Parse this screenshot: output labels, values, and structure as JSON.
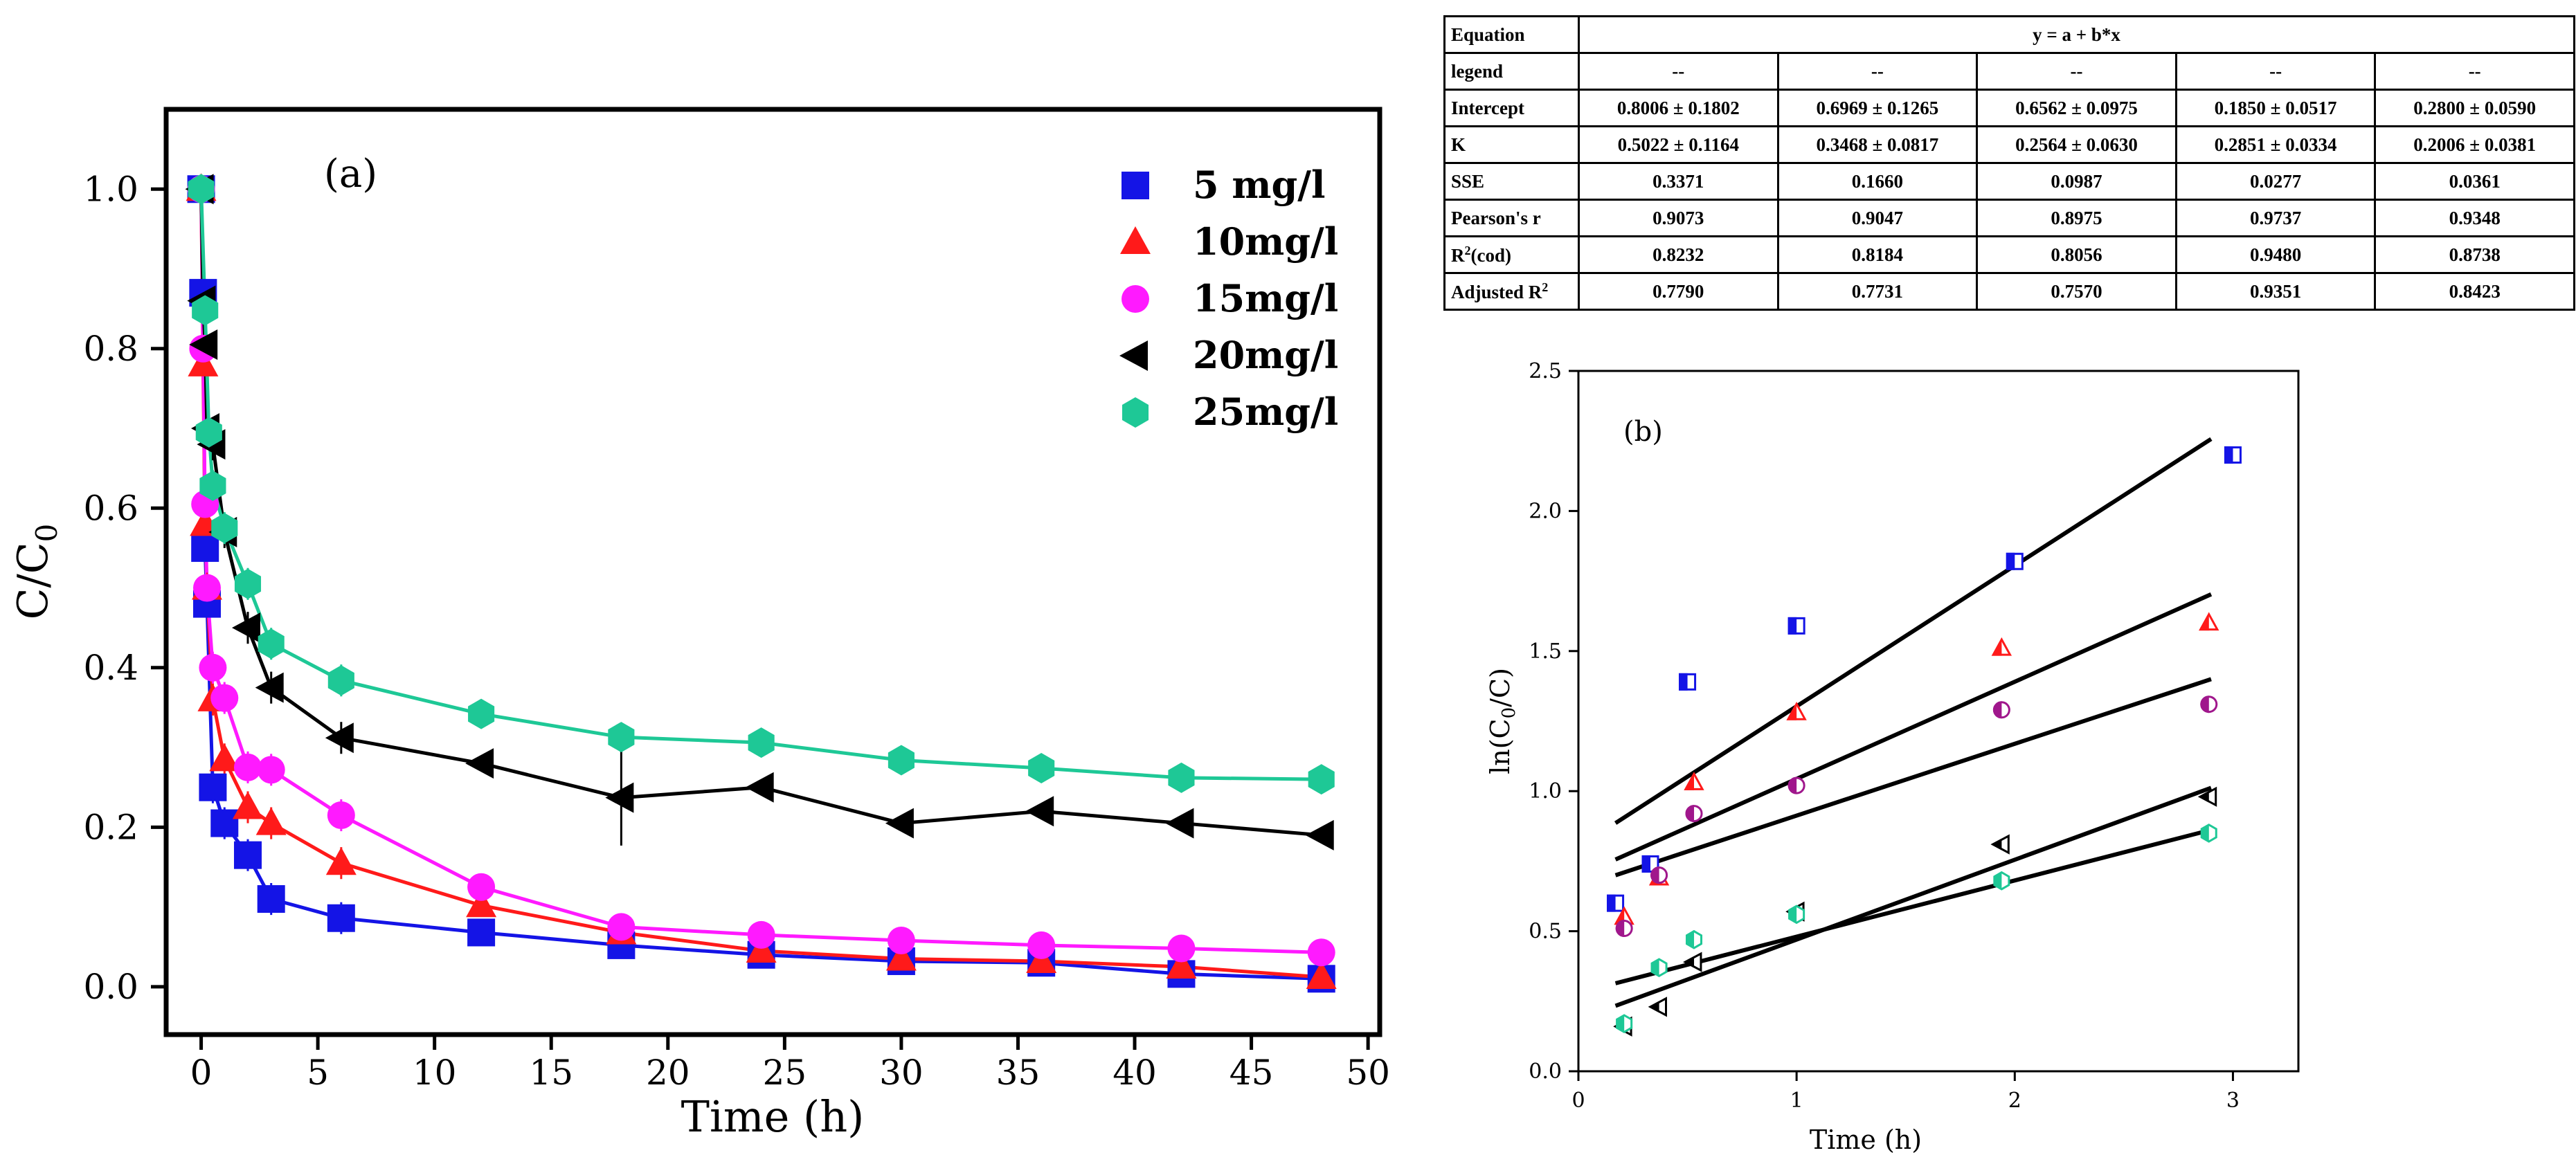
{
  "chart_data": [
    {
      "type": "line",
      "title": "(a)",
      "xlabel": "Time (h)",
      "ylabel_main": "C/C",
      "ylabel_sub": "0",
      "xlim": [
        -1.5,
        50.5
      ],
      "ylim": [
        -0.06,
        1.1
      ],
      "xticks": [
        0,
        5,
        10,
        15,
        20,
        25,
        30,
        35,
        40,
        45,
        50
      ],
      "yticks": [
        0.0,
        0.2,
        0.4,
        0.6,
        0.8,
        1.0
      ],
      "ytick_labels": [
        "0.0",
        "0.2",
        "0.4",
        "0.6",
        "0.8",
        "1.0"
      ],
      "legend_position": "top-right",
      "series": [
        {
          "name": "5  mg/l",
          "color": "#1414e6",
          "marker": "square",
          "x": [
            0,
            0.083,
            0.167,
            0.25,
            0.5,
            1,
            2,
            3,
            6,
            12,
            18,
            24,
            30,
            36,
            42,
            48
          ],
          "y": [
            1.0,
            0.87,
            0.55,
            0.48,
            0.25,
            0.205,
            0.165,
            0.11,
            0.086,
            0.068,
            0.052,
            0.04,
            0.032,
            0.03,
            0.016,
            0.01
          ]
        },
        {
          "name": "10mg/l",
          "color": "#ff1a1a",
          "marker": "triangle",
          "x": [
            0,
            0.083,
            0.167,
            0.25,
            0.5,
            1,
            2,
            3,
            6,
            12,
            18,
            24,
            30,
            36,
            42,
            48
          ],
          "y": [
            1.0,
            0.78,
            0.58,
            0.5,
            0.36,
            0.285,
            0.225,
            0.205,
            0.155,
            0.102,
            0.068,
            0.045,
            0.035,
            0.032,
            0.025,
            0.012
          ]
        },
        {
          "name": "15mg/l",
          "color": "#ff1aff",
          "marker": "circle",
          "x": [
            0,
            0.083,
            0.167,
            0.25,
            0.5,
            1,
            2,
            3,
            6,
            12,
            18,
            24,
            30,
            36,
            42,
            48
          ],
          "y": [
            1.0,
            0.8,
            0.605,
            0.5,
            0.4,
            0.362,
            0.275,
            0.272,
            0.215,
            0.125,
            0.075,
            0.065,
            0.058,
            0.052,
            0.048,
            0.043
          ]
        },
        {
          "name": "20mg/l",
          "color": "#000000",
          "marker": "triangle-left",
          "x": [
            0,
            0.083,
            0.167,
            0.25,
            0.5,
            1,
            2,
            3,
            6,
            12,
            18,
            24,
            30,
            36,
            42,
            48
          ],
          "y": [
            1.0,
            0.86,
            0.805,
            0.7,
            0.68,
            0.57,
            0.45,
            0.375,
            0.312,
            0.28,
            0.237,
            0.25,
            0.205,
            0.22,
            0.205,
            0.19
          ]
        },
        {
          "name": "25mg/l",
          "color": "#1ec896",
          "marker": "hexagon",
          "x": [
            0,
            0.167,
            0.333,
            0.5,
            1,
            2,
            3,
            6,
            12,
            18,
            24,
            30,
            36,
            42,
            48
          ],
          "y": [
            1.0,
            0.848,
            0.695,
            0.628,
            0.575,
            0.505,
            0.43,
            0.384,
            0.342,
            0.313,
            0.306,
            0.284,
            0.274,
            0.262,
            0.26
          ]
        }
      ]
    },
    {
      "type": "scatter",
      "title": "(b)",
      "xlabel": "Time (h)",
      "ylabel": "ln(C",
      "ylabel_sub": "0",
      "ylabel_tail": "/C)",
      "xlim": [
        0,
        3.3
      ],
      "ylim": [
        0,
        2.5
      ],
      "xticks": [
        0,
        1,
        2,
        3
      ],
      "yticks": [
        0.0,
        0.5,
        1.0,
        1.5,
        2.0,
        2.5
      ],
      "ytick_labels": [
        "0.0",
        "0.5",
        "1.0",
        "1.5",
        "2.0",
        "2.5"
      ],
      "series": [
        {
          "color": "#1414e6",
          "marker": "square",
          "x": [
            0.17,
            0.33,
            0.5,
            1.0,
            2.0,
            3.0
          ],
          "y": [
            0.6,
            0.74,
            1.39,
            1.59,
            1.82,
            2.2
          ],
          "fit": {
            "intercept": 0.8006,
            "slope": 0.5022
          }
        },
        {
          "color": "#ff1a1a",
          "marker": "triangle",
          "x": [
            0.21,
            0.37,
            0.53,
            1.0,
            1.94,
            2.89
          ],
          "y": [
            0.55,
            0.69,
            1.03,
            1.28,
            1.51,
            1.6
          ],
          "fit": {
            "intercept": 0.6969,
            "slope": 0.3468
          }
        },
        {
          "color": "#a0178c",
          "marker": "circle",
          "x": [
            0.21,
            0.37,
            0.53,
            1.0,
            1.94,
            2.89
          ],
          "y": [
            0.51,
            0.7,
            0.92,
            1.02,
            1.29,
            1.31
          ],
          "fit": {
            "intercept": 0.6562,
            "slope": 0.2564
          }
        },
        {
          "color": "#000000",
          "marker": "triangle-left",
          "x": [
            0.21,
            0.37,
            0.53,
            1.0,
            1.94,
            2.89
          ],
          "y": [
            0.16,
            0.23,
            0.39,
            0.57,
            0.81,
            0.98
          ],
          "fit": {
            "intercept": 0.185,
            "slope": 0.2851
          }
        },
        {
          "color": "#1ec896",
          "marker": "hexagon",
          "x": [
            0.21,
            0.37,
            0.53,
            1.0,
            1.94,
            2.89
          ],
          "y": [
            0.17,
            0.37,
            0.47,
            0.56,
            0.68,
            0.85
          ],
          "fit": {
            "intercept": 0.28,
            "slope": 0.2006
          }
        }
      ]
    }
  ],
  "fit_table": {
    "row_equation": {
      "label": "Equation",
      "value": "y = a + b*x"
    },
    "row_legend": {
      "label": "legend",
      "values": [
        "--",
        "--",
        "--",
        "--",
        "--"
      ]
    },
    "rows": [
      {
        "label": "Intercept",
        "values": [
          "0.8006 ± 0.1802",
          "0.6969 ± 0.1265",
          "0.6562 ± 0.0975",
          "0.1850 ± 0.0517",
          "0.2800 ± 0.0590"
        ]
      },
      {
        "label": "K",
        "values": [
          "0.5022 ± 0.1164",
          "0.3468 ± 0.0817",
          "0.2564 ± 0.0630",
          "0.2851 ± 0.0334",
          "0.2006 ± 0.0381"
        ]
      },
      {
        "label": "SSE",
        "values": [
          "0.3371",
          "0.1660",
          "0.0987",
          "0.0277",
          "0.0361"
        ]
      },
      {
        "label": "Pearson's r",
        "values": [
          "0.9073",
          "0.9047",
          "0.8975",
          "0.9737",
          "0.9348"
        ]
      }
    ],
    "row_r2": {
      "label_main": "R",
      "label_sup": "2",
      "label_tail": "(cod)",
      "values": [
        "0.8232",
        "0.8184",
        "0.8056",
        "0.9480",
        "0.8738"
      ]
    },
    "row_adj": {
      "label_main": "Adjusted R",
      "label_sup": "2",
      "values": [
        "0.7790",
        "0.7731",
        "0.7570",
        "0.9351",
        "0.8423"
      ]
    }
  }
}
